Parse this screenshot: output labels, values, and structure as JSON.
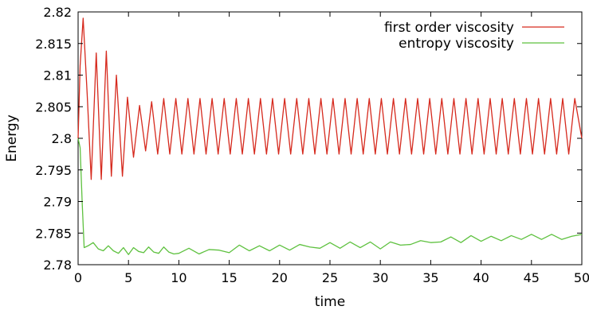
{
  "chart_data": {
    "type": "line",
    "title": "",
    "xlabel": "time",
    "ylabel": "Energy",
    "xlim": [
      0,
      50
    ],
    "ylim": [
      2.78,
      2.82
    ],
    "x_ticks": [
      "0",
      "5",
      "10",
      "15",
      "20",
      "25",
      "30",
      "35",
      "40",
      "45",
      "50"
    ],
    "y_ticks": [
      "2.78",
      "2.785",
      "2.79",
      "2.795",
      "2.8",
      "2.805",
      "2.81",
      "2.815",
      "2.82"
    ],
    "grid": false,
    "legend_position": "top-right",
    "series": [
      {
        "name": "first order viscosity",
        "color": "#d62a1e",
        "x": [
          0,
          0.2,
          0.5,
          0.9,
          1.3,
          1.8,
          2.3,
          2.8,
          3.3,
          3.8,
          4.4,
          4.9,
          5.5,
          6.1,
          6.7,
          7.3,
          7.9,
          8.5,
          9.1,
          9.7,
          10.3,
          10.9,
          11.5,
          12.1,
          12.7,
          13.3,
          13.9,
          14.5,
          15.1,
          15.7,
          16.3,
          16.9,
          17.5,
          18.1,
          18.7,
          19.3,
          19.9,
          20.5,
          21.1,
          21.7,
          22.3,
          22.9,
          23.5,
          24.1,
          24.7,
          25.3,
          25.9,
          26.5,
          27.1,
          27.7,
          28.3,
          28.9,
          29.5,
          30.1,
          30.7,
          31.3,
          31.9,
          32.5,
          33.1,
          33.7,
          34.3,
          34.9,
          35.5,
          36.1,
          36.7,
          37.3,
          37.9,
          38.5,
          39.1,
          39.7,
          40.3,
          40.9,
          41.5,
          42.1,
          42.7,
          43.3,
          43.9,
          44.5,
          45.1,
          45.7,
          46.3,
          46.9,
          47.5,
          48.1,
          48.7,
          49.3,
          50
        ],
        "values": [
          2.8,
          2.8115,
          2.819,
          2.807,
          2.7935,
          2.8135,
          2.7935,
          2.8138,
          2.794,
          2.81,
          2.794,
          2.8065,
          2.797,
          2.8052,
          2.798,
          2.8058,
          2.7975,
          2.8063,
          2.7975,
          2.8063,
          2.7975,
          2.8063,
          2.7975,
          2.8063,
          2.7975,
          2.8063,
          2.7975,
          2.8063,
          2.7975,
          2.8063,
          2.7975,
          2.8063,
          2.7975,
          2.8063,
          2.7975,
          2.8063,
          2.7975,
          2.8063,
          2.7975,
          2.8063,
          2.7975,
          2.8063,
          2.7975,
          2.8063,
          2.7975,
          2.8063,
          2.7975,
          2.8063,
          2.7975,
          2.8063,
          2.7975,
          2.8063,
          2.7975,
          2.8063,
          2.7975,
          2.8063,
          2.7975,
          2.8063,
          2.7975,
          2.8063,
          2.7975,
          2.8063,
          2.7975,
          2.8063,
          2.7975,
          2.8063,
          2.7975,
          2.8063,
          2.7975,
          2.8063,
          2.7975,
          2.8063,
          2.7975,
          2.8063,
          2.7975,
          2.8063,
          2.7975,
          2.8063,
          2.7975,
          2.8063,
          2.7975,
          2.8063,
          2.7975,
          2.8063,
          2.7975,
          2.8063,
          2.8
        ]
      },
      {
        "name": "entropy viscosity",
        "color": "#5ec13f",
        "x": [
          0,
          0.2,
          0.4,
          0.6,
          1.0,
          1.5,
          2.0,
          2.5,
          3.0,
          3.5,
          4.0,
          4.5,
          5.0,
          5.5,
          6.0,
          6.5,
          7.0,
          7.5,
          8.0,
          8.5,
          9.0,
          9.5,
          10.0,
          11.0,
          12.0,
          13.0,
          14.0,
          15.0,
          16.0,
          17.0,
          18.0,
          19.0,
          20.0,
          21.0,
          22.0,
          23.0,
          24.0,
          25.0,
          26.0,
          27.0,
          28.0,
          29.0,
          30.0,
          31.0,
          32.0,
          33.0,
          34.0,
          35.0,
          36.0,
          37.0,
          38.0,
          39.0,
          40.0,
          41.0,
          42.0,
          43.0,
          44.0,
          45.0,
          46.0,
          47.0,
          48.0,
          49.0,
          50.0
        ],
        "values": [
          2.8,
          2.7985,
          2.79,
          2.7827,
          2.783,
          2.7835,
          2.7825,
          2.7822,
          2.783,
          2.7822,
          2.7818,
          2.7827,
          2.7816,
          2.7827,
          2.7821,
          2.7819,
          2.7828,
          2.782,
          2.7818,
          2.7828,
          2.782,
          2.7817,
          2.7818,
          2.7826,
          2.7817,
          2.7824,
          2.7823,
          2.7819,
          2.7831,
          2.7822,
          2.783,
          2.7822,
          2.7831,
          2.7823,
          2.7832,
          2.7828,
          2.7826,
          2.7835,
          2.7826,
          2.7836,
          2.7827,
          2.7836,
          2.7825,
          2.7836,
          2.7831,
          2.7832,
          2.7838,
          2.7835,
          2.7836,
          2.7844,
          2.7835,
          2.7846,
          2.7837,
          2.7845,
          2.7838,
          2.7846,
          2.784,
          2.7848,
          2.784,
          2.7848,
          2.784,
          2.7845,
          2.7848
        ]
      }
    ]
  }
}
